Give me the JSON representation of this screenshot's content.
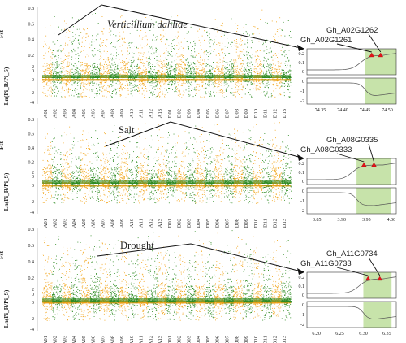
{
  "figure": {
    "y_label_fst": "Fst",
    "y_label_ln": "Ln(Pi_R/Pi_S)"
  },
  "chart_data": [
    {
      "type": "manhattan",
      "title": "Verticillium dahliae",
      "title_italic": true,
      "fst_yticks": [
        "0",
        "0.2",
        "0.4",
        "0.6",
        "0.8"
      ],
      "ln_yticks": [
        "-4",
        "-2",
        "0",
        "2"
      ],
      "chromosomes": [
        "A01",
        "A02",
        "A03",
        "A04",
        "A05",
        "A06",
        "A07",
        "A08",
        "A09",
        "A10",
        "A11",
        "A12",
        "A13",
        "D01",
        "D02",
        "D03",
        "D04",
        "D05",
        "D06",
        "D07",
        "D08",
        "D09",
        "D10",
        "D11",
        "D12",
        "D13"
      ],
      "colors": {
        "odd": "#f2a51a",
        "even": "#2e8b22"
      },
      "inset": {
        "xticks": [
          "74.35",
          "74.40",
          "74.45",
          "74.50"
        ],
        "xrange": [
          74.32,
          74.52
        ],
        "fst_yticks": [
          "0",
          "0.1",
          "0.2"
        ],
        "ln_yticks": [
          "-2",
          "-1",
          "0"
        ],
        "highlight": [
          74.45,
          74.52
        ],
        "genes": [
          {
            "label": "Gh_A02G1262",
            "pos": 74.485
          },
          {
            "label": "Gh_A02G1261",
            "pos": 74.465
          }
        ]
      }
    },
    {
      "type": "manhattan",
      "title": "Salt",
      "title_italic": false,
      "fst_yticks": [
        "0",
        "0.2",
        "0.4",
        "0.6",
        "0.8"
      ],
      "ln_yticks": [
        "-4",
        "-2",
        "0",
        "2"
      ],
      "chromosomes": [
        "A01",
        "A02",
        "A03",
        "A04",
        "A05",
        "A06",
        "A07",
        "A08",
        "A09",
        "A10",
        "A11",
        "A12",
        "A13",
        "D01",
        "D02",
        "D03",
        "D04",
        "D05",
        "D06",
        "D07",
        "D08",
        "D09",
        "D10",
        "D11",
        "D12",
        "D13"
      ],
      "colors": {
        "odd": "#f2a51a",
        "even": "#2e8b22"
      },
      "inset": {
        "xticks": [
          "3.85",
          "3.90",
          "3.95",
          "4.00"
        ],
        "xrange": [
          3.83,
          4.01
        ],
        "fst_yticks": [
          "0",
          "0.1",
          "0.2"
        ],
        "ln_yticks": [
          "-2",
          "-1",
          "0"
        ],
        "highlight": [
          3.93,
          4.0
        ],
        "genes": [
          {
            "label": "Gh_A08G0335",
            "pos": 3.965
          },
          {
            "label": "Gh_A08G0333",
            "pos": 3.945
          }
        ]
      }
    },
    {
      "type": "manhattan",
      "title": "Drought",
      "title_italic": false,
      "fst_yticks": [
        "0",
        "0.2",
        "0.4",
        "0.6",
        "0.8"
      ],
      "ln_yticks": [
        "-4",
        "-2",
        "0",
        "2"
      ],
      "chromosomes": [
        "A01",
        "A02",
        "A03",
        "A04",
        "A05",
        "A06",
        "A07",
        "A08",
        "A09",
        "A10",
        "A11",
        "A12",
        "A13",
        "D01",
        "D02",
        "D03",
        "D04",
        "D05",
        "D06",
        "D07",
        "D08",
        "D09",
        "D10",
        "D11",
        "D12",
        "D13"
      ],
      "colors": {
        "odd": "#f2a51a",
        "even": "#2e8b22"
      },
      "inset": {
        "xticks": [
          "6.20",
          "6.25",
          "6.30",
          "6.35"
        ],
        "xrange": [
          6.18,
          6.37
        ],
        "fst_yticks": [
          "0",
          "0.1",
          "0.2"
        ],
        "ln_yticks": [
          "-2",
          "-1",
          "0"
        ],
        "highlight": [
          6.3,
          6.36
        ],
        "genes": [
          {
            "label": "Gh_A11G0734",
            "pos": 6.335
          },
          {
            "label": "Gh_A11G0733",
            "pos": 6.31
          }
        ]
      }
    }
  ]
}
